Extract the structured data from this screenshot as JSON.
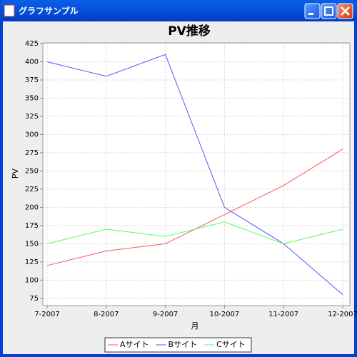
{
  "window": {
    "title": "グラフサンプル"
  },
  "chart_data": {
    "type": "line",
    "title": "PV推移",
    "x_label": "月",
    "y_label": "PV",
    "categories": [
      "7-2007",
      "8-2007",
      "9-2007",
      "10-2007",
      "11-2007",
      "12-2007"
    ],
    "series": [
      {
        "name": "Aサイト",
        "color": "#ff5555",
        "values": [
          120,
          140,
          150,
          190,
          230,
          280
        ]
      },
      {
        "name": "Bサイト",
        "color": "#5555ff",
        "values": [
          400,
          380,
          410,
          200,
          150,
          80
        ]
      },
      {
        "name": "Cサイト",
        "color": "#55ff55",
        "values": [
          150,
          170,
          160,
          180,
          150,
          170
        ]
      }
    ],
    "ylim": [
      65,
      426
    ],
    "yticks": [
      75,
      100,
      125,
      150,
      175,
      200,
      225,
      250,
      275,
      300,
      325,
      350,
      375,
      400,
      425
    ],
    "grid": true,
    "legend": "bottom"
  }
}
